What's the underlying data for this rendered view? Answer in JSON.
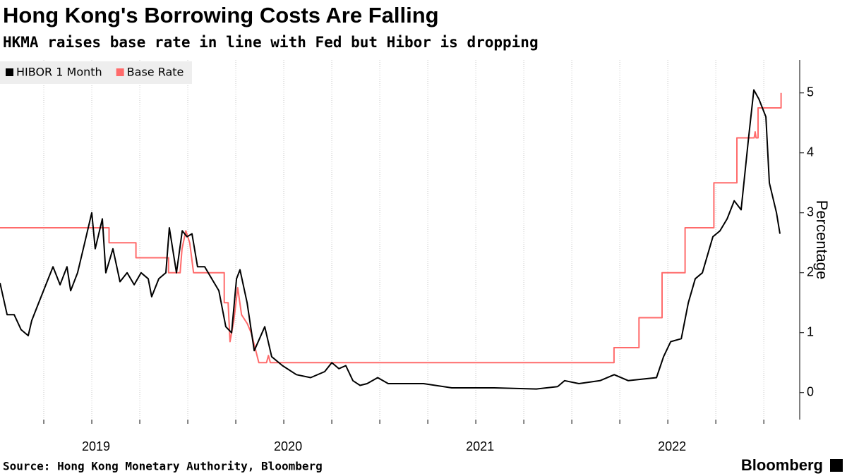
{
  "chart_data": {
    "type": "line",
    "title": "Hong Kong's Borrowing Costs Are Falling",
    "subtitle": "HKMA raises base rate in line with Fed but Hibor is dropping",
    "y_label": "Percentage",
    "source": "Source: Hong Kong Monetary Authority, Bloomberg",
    "brand": "Bloomberg",
    "xlim": [
      2018.522,
      2022.687
    ],
    "xticks": [
      2019,
      2020,
      2021,
      2022
    ],
    "minor_xticks": [
      2018.75,
      2019.0,
      2019.25,
      2019.5,
      2019.75,
      2020.0,
      2020.25,
      2020.5,
      2020.75,
      2021.0,
      2021.25,
      2021.5,
      2021.75,
      2022.0,
      2022.25,
      2022.5
    ],
    "ylim": [
      -0.45,
      5.55
    ],
    "yticks": [
      0,
      1,
      2,
      3,
      4,
      5
    ],
    "grid": "x",
    "legend": "top-left",
    "series": [
      {
        "name": "HIBOR 1 Month",
        "color": "#000000",
        "x": [
          2018.522,
          2018.559,
          2018.596,
          2018.632,
          2018.669,
          2018.687,
          2018.724,
          2018.761,
          2018.798,
          2018.835,
          2018.871,
          2018.89,
          2018.926,
          2018.963,
          2019.0,
          2019.018,
          2019.055,
          2019.073,
          2019.11,
          2019.147,
          2019.184,
          2019.221,
          2019.257,
          2019.294,
          2019.312,
          2019.349,
          2019.386,
          2019.404,
          2019.441,
          2019.471,
          2019.496,
          2019.522,
          2019.551,
          2019.588,
          2019.625,
          2019.662,
          2019.698,
          2019.728,
          2019.754,
          2019.772,
          2019.809,
          2019.846,
          2019.901,
          2019.937,
          2019.993,
          2020.066,
          2020.14,
          2020.213,
          2020.25,
          2020.287,
          2020.323,
          2020.36,
          2020.397,
          2020.434,
          2020.489,
          2020.544,
          2020.728,
          2020.875,
          2021.096,
          2021.316,
          2021.426,
          2021.463,
          2021.537,
          2021.647,
          2021.721,
          2021.794,
          2021.941,
          2021.978,
          2022.015,
          2022.07,
          2022.107,
          2022.143,
          2022.18,
          2022.235,
          2022.272,
          2022.309,
          2022.346,
          2022.382,
          2022.419,
          2022.448,
          2022.474,
          2022.511,
          2022.529,
          2022.566,
          2022.584
        ],
        "values": [
          1.83,
          1.3,
          1.3,
          1.05,
          0.95,
          1.2,
          1.5,
          1.8,
          2.1,
          1.8,
          2.1,
          1.7,
          2.0,
          2.5,
          3.0,
          2.4,
          2.9,
          2.0,
          2.4,
          1.85,
          2.0,
          1.8,
          2.0,
          1.9,
          1.6,
          1.9,
          2.0,
          2.75,
          2.0,
          2.7,
          2.6,
          2.65,
          2.1,
          2.1,
          1.9,
          1.7,
          1.1,
          1.0,
          1.9,
          2.05,
          1.5,
          0.7,
          1.1,
          0.6,
          0.45,
          0.3,
          0.25,
          0.35,
          0.5,
          0.4,
          0.45,
          0.2,
          0.12,
          0.15,
          0.25,
          0.15,
          0.15,
          0.08,
          0.08,
          0.06,
          0.1,
          0.2,
          0.15,
          0.2,
          0.3,
          0.2,
          0.25,
          0.6,
          0.85,
          0.9,
          1.5,
          1.9,
          2.0,
          2.6,
          2.7,
          2.9,
          3.2,
          3.05,
          4.2,
          5.05,
          4.9,
          4.6,
          3.5,
          3.0,
          2.65
        ]
      },
      {
        "name": "Base Rate",
        "color": "#ff6b6b",
        "x": [
          2018.522,
          2019.09,
          2019.09,
          2019.23,
          2019.23,
          2019.4,
          2019.4,
          2019.46,
          2019.47,
          2019.49,
          2019.51,
          2019.53,
          2019.69,
          2019.69,
          2019.71,
          2019.72,
          2019.74,
          2019.76,
          2019.78,
          2019.81,
          2019.83,
          2019.85,
          2019.87,
          2019.91,
          2019.92,
          2019.93,
          2021.72,
          2021.72,
          2021.85,
          2021.85,
          2021.97,
          2021.97,
          2022.09,
          2022.09,
          2022.24,
          2022.24,
          2022.36,
          2022.36,
          2022.45,
          2022.455,
          2022.46,
          2022.47,
          2022.47,
          2022.59,
          2022.59
        ],
        "values": [
          2.75,
          2.75,
          2.5,
          2.5,
          2.25,
          2.25,
          2.0,
          2.0,
          2.4,
          2.7,
          2.5,
          2.0,
          2.0,
          1.5,
          1.5,
          0.85,
          1.2,
          1.75,
          1.3,
          1.15,
          1.0,
          0.75,
          0.5,
          0.5,
          0.62,
          0.5,
          0.5,
          0.75,
          0.75,
          1.25,
          1.25,
          2.0,
          2.0,
          2.75,
          2.75,
          3.5,
          3.5,
          4.25,
          4.25,
          4.35,
          4.25,
          4.25,
          4.75,
          4.75,
          5.0
        ]
      }
    ]
  }
}
